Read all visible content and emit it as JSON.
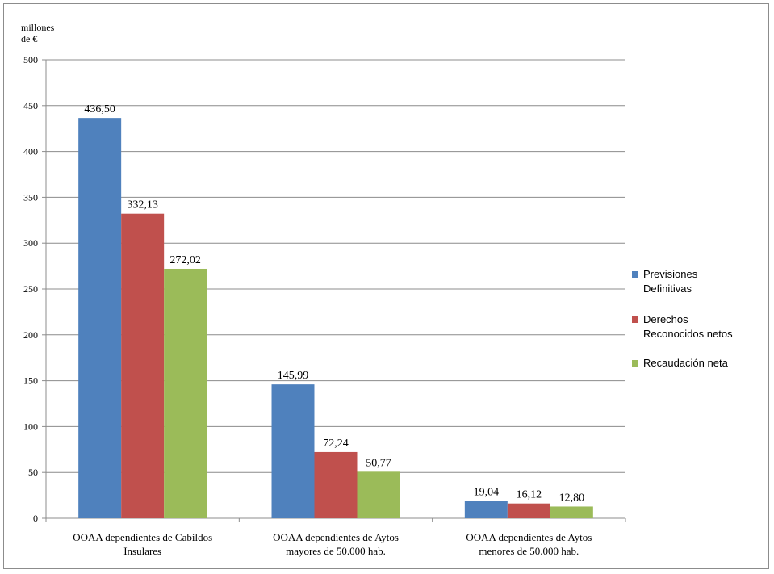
{
  "chart_data": {
    "type": "bar",
    "unit_label_lines": [
      "millones",
      "de €"
    ],
    "categories": [
      [
        "OOAA dependientes de Cabildos",
        "Insulares"
      ],
      [
        "OOAA dependientes de Aytos",
        "mayores de 50.000 hab."
      ],
      [
        "OOAA dependientes de Aytos",
        "menores de 50.000 hab."
      ]
    ],
    "series": [
      {
        "name_lines": [
          "Previsiones",
          "Definitivas"
        ],
        "color": "#4f81bd",
        "values": [
          436.5,
          145.99,
          19.04
        ],
        "labels": [
          "436,50",
          "145,99",
          "19,04"
        ]
      },
      {
        "name_lines": [
          "Derechos",
          "Reconocidos netos"
        ],
        "color": "#c0504d",
        "values": [
          332.13,
          72.24,
          16.12
        ],
        "labels": [
          "332,13",
          "72,24",
          "16,12"
        ]
      },
      {
        "name_lines": [
          "Recaudación neta"
        ],
        "color": "#9bbb59",
        "values": [
          272.02,
          50.77,
          12.8
        ],
        "labels": [
          "272,02",
          "50,77",
          "12,80"
        ]
      }
    ],
    "ylim": [
      0,
      500
    ],
    "yticks": [
      0,
      50,
      100,
      150,
      200,
      250,
      300,
      350,
      400,
      450,
      500
    ],
    "grid": true,
    "legend_position": "right"
  }
}
